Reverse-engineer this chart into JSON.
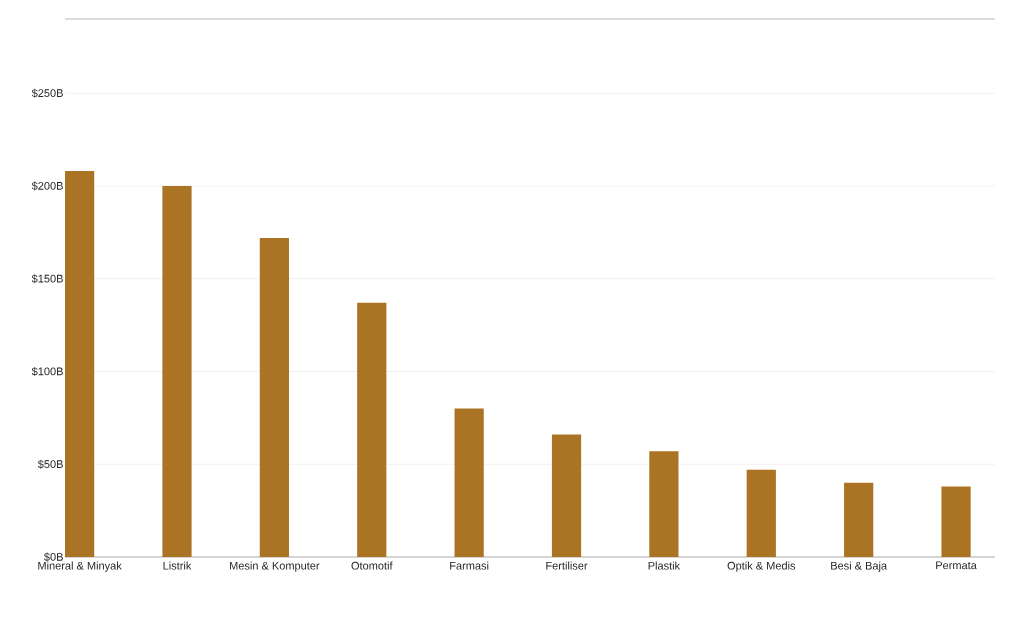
{
  "chart_data": {
    "type": "bar",
    "categories": [
      "Mineral & Minyak",
      "Listrik",
      "Mesin & Komputer",
      "Otomotif",
      "Farmasi",
      "Fertiliser",
      "Plastik",
      "Optik & Medis",
      "Besi & Baja",
      "Permata"
    ],
    "values": [
      208,
      200,
      172,
      137,
      80,
      66,
      57,
      47,
      40,
      38
    ],
    "color": "#ab7425",
    "ylim": [
      0,
      290
    ],
    "yticks": [
      {
        "value": 0,
        "label": "$0B"
      },
      {
        "value": 50,
        "label": "$50B"
      },
      {
        "value": 100,
        "label": "$100B"
      },
      {
        "value": 150,
        "label": "$150B"
      },
      {
        "value": 200,
        "label": "$200B"
      },
      {
        "value": 250,
        "label": "$250B"
      }
    ],
    "grid": "y"
  }
}
